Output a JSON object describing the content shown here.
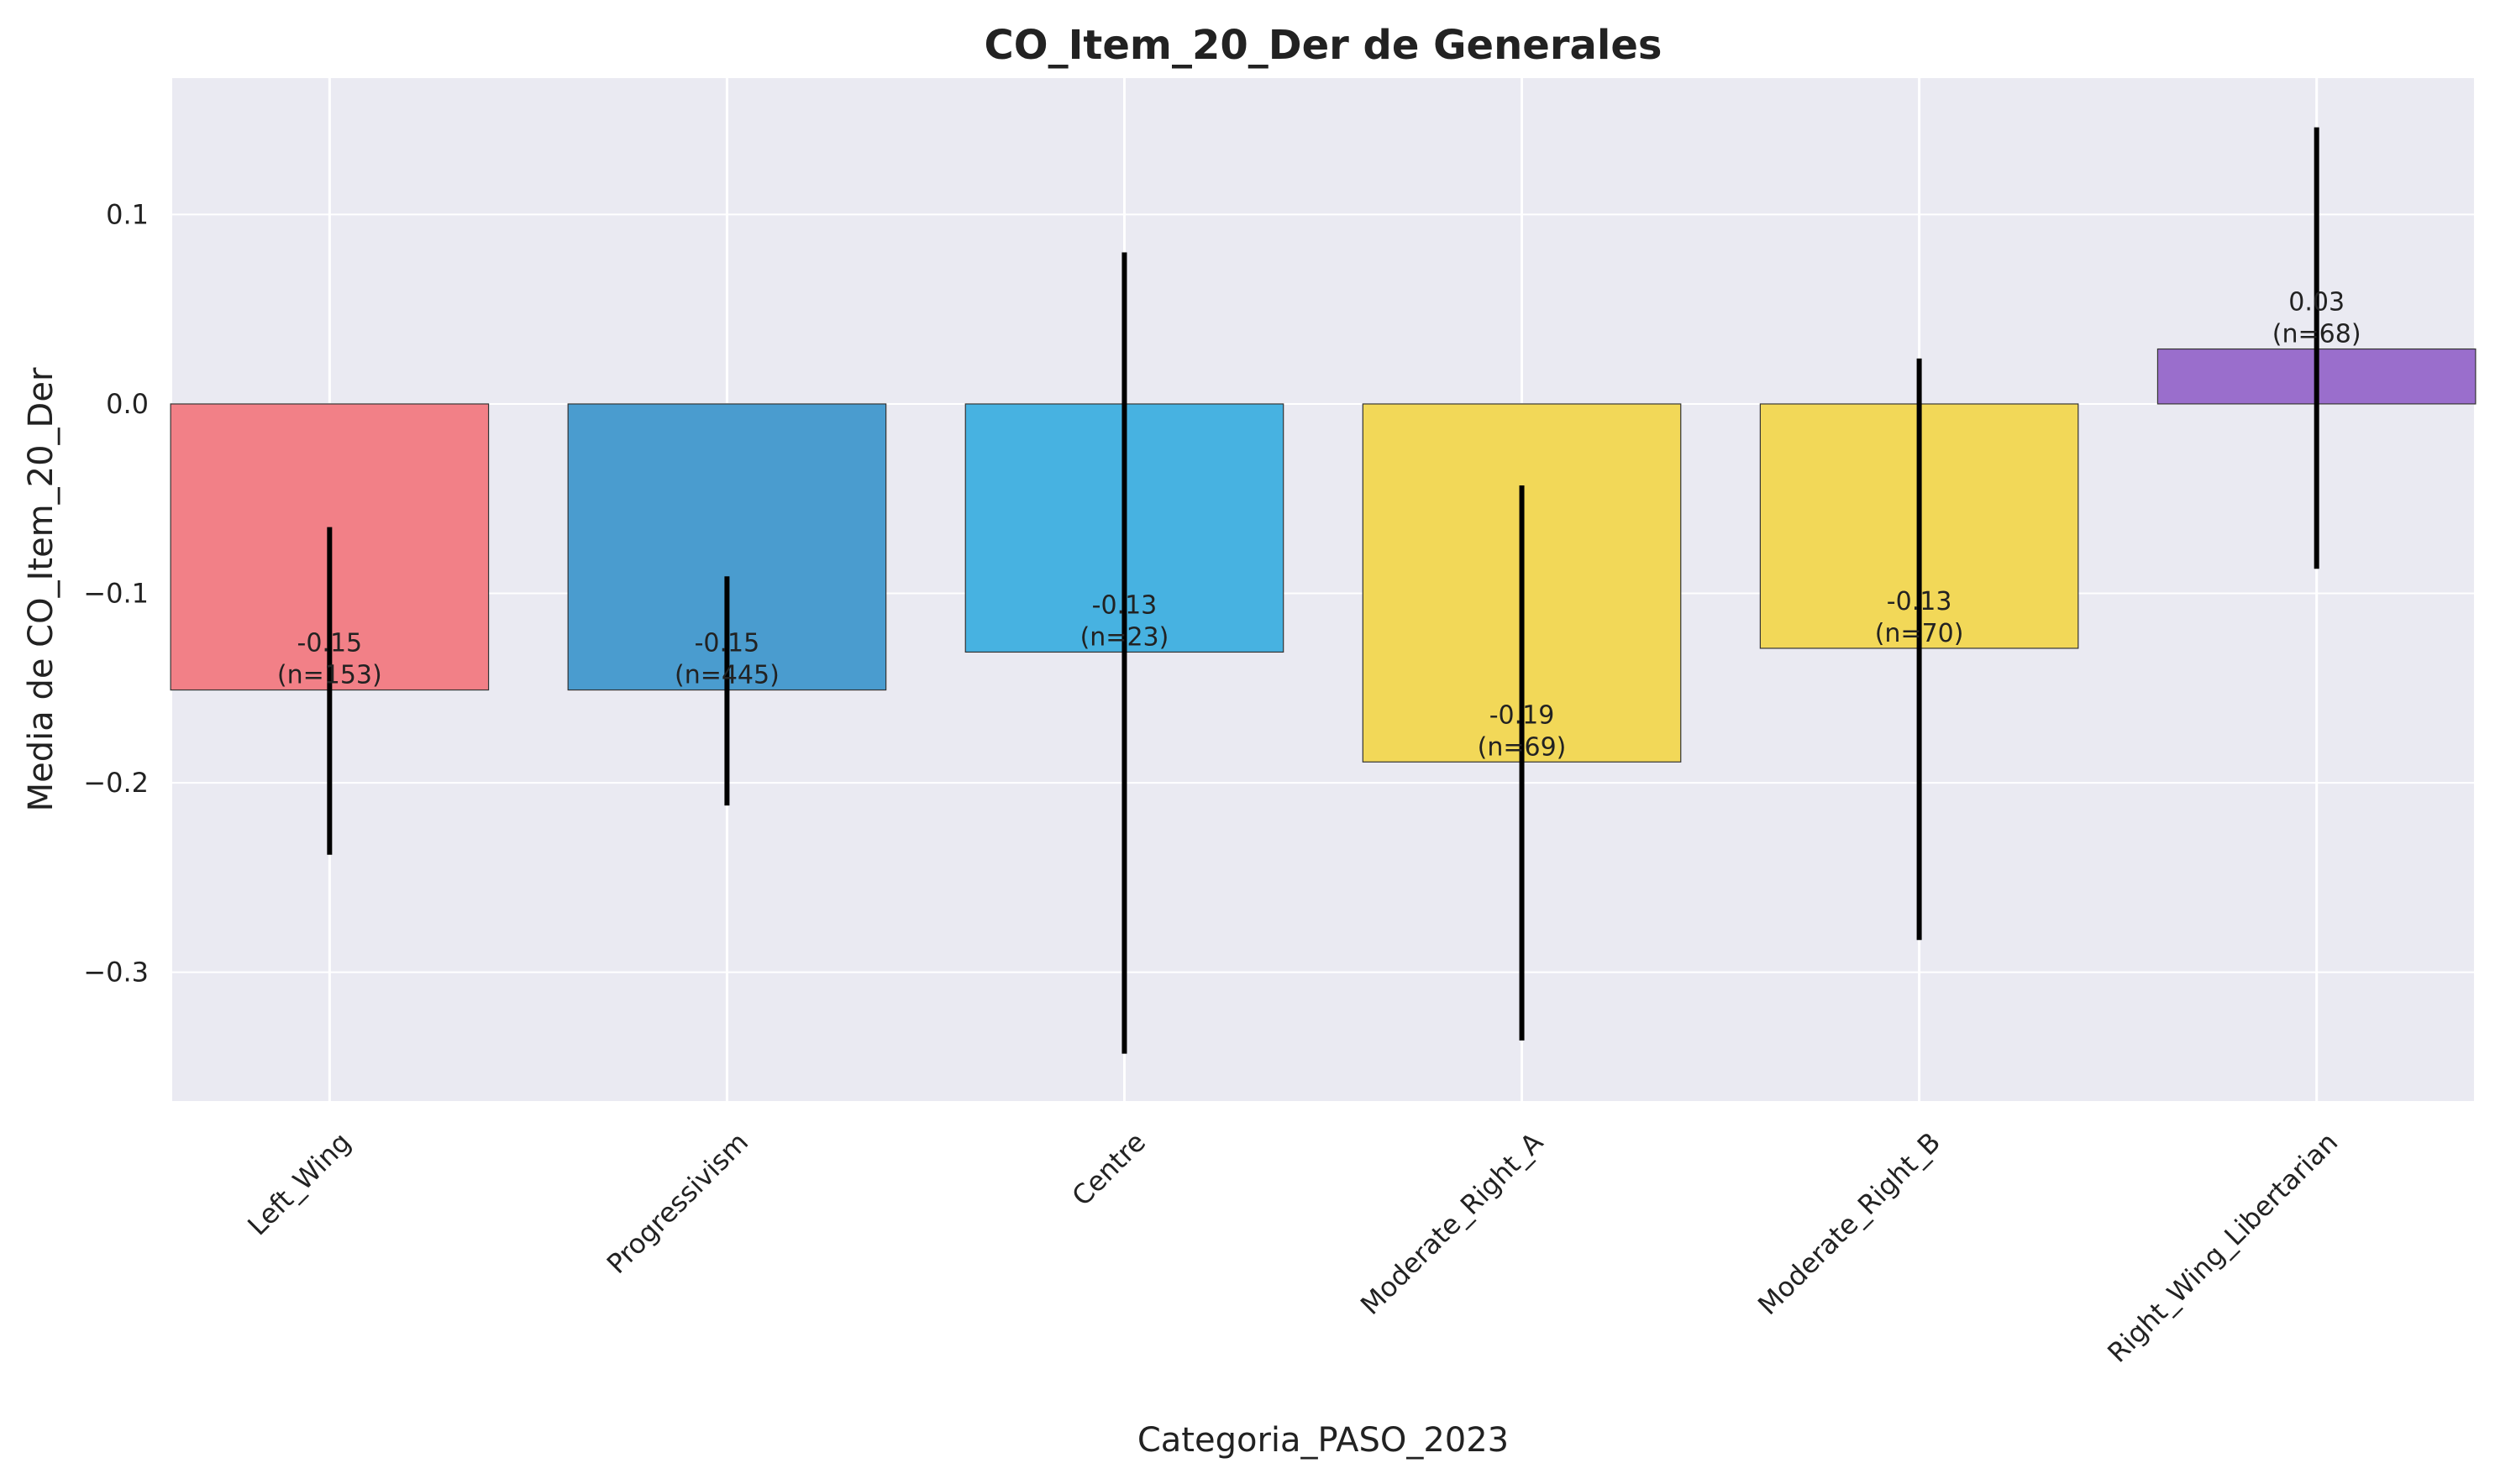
{
  "chart_data": {
    "type": "bar",
    "title": "CO_Item_20_Der de Generales",
    "xlabel": "Categoria_PASO_2023",
    "ylabel": "Media de CO_Item_20_Der",
    "ylim": [
      -0.368,
      0.172
    ],
    "yticks": [
      0.1,
      0.0,
      -0.1,
      -0.2,
      -0.3
    ],
    "ytick_labels": [
      "0.1",
      "0.0",
      "−0.1",
      "−0.2",
      "−0.3"
    ],
    "grid": true,
    "categories": [
      "Left_Wing",
      "Progressivism",
      "Centre",
      "Moderate_Right_A",
      "Moderate_Right_B",
      "Right_Wing_Libertarian"
    ],
    "values": [
      -0.151,
      -0.151,
      -0.131,
      -0.189,
      -0.129,
      0.029
    ],
    "error_low": [
      -0.238,
      -0.212,
      -0.343,
      -0.336,
      -0.283,
      -0.087
    ],
    "error_high": [
      -0.065,
      -0.091,
      0.08,
      -0.043,
      0.024,
      0.146
    ],
    "value_labels": [
      "-0.15",
      "-0.15",
      "-0.13",
      "-0.19",
      "-0.13",
      "0.03"
    ],
    "n_labels": [
      "(n=153)",
      "(n=445)",
      "(n=23)",
      "(n=69)",
      "(n=70)",
      "(n=68)"
    ],
    "colors": [
      "#f28087",
      "#4a9ccf",
      "#47b2e1",
      "#f2d858",
      "#f2d858",
      "#9a6ecc"
    ],
    "plot_background": "#eaeaf2",
    "grid_color": "#ffffff"
  }
}
